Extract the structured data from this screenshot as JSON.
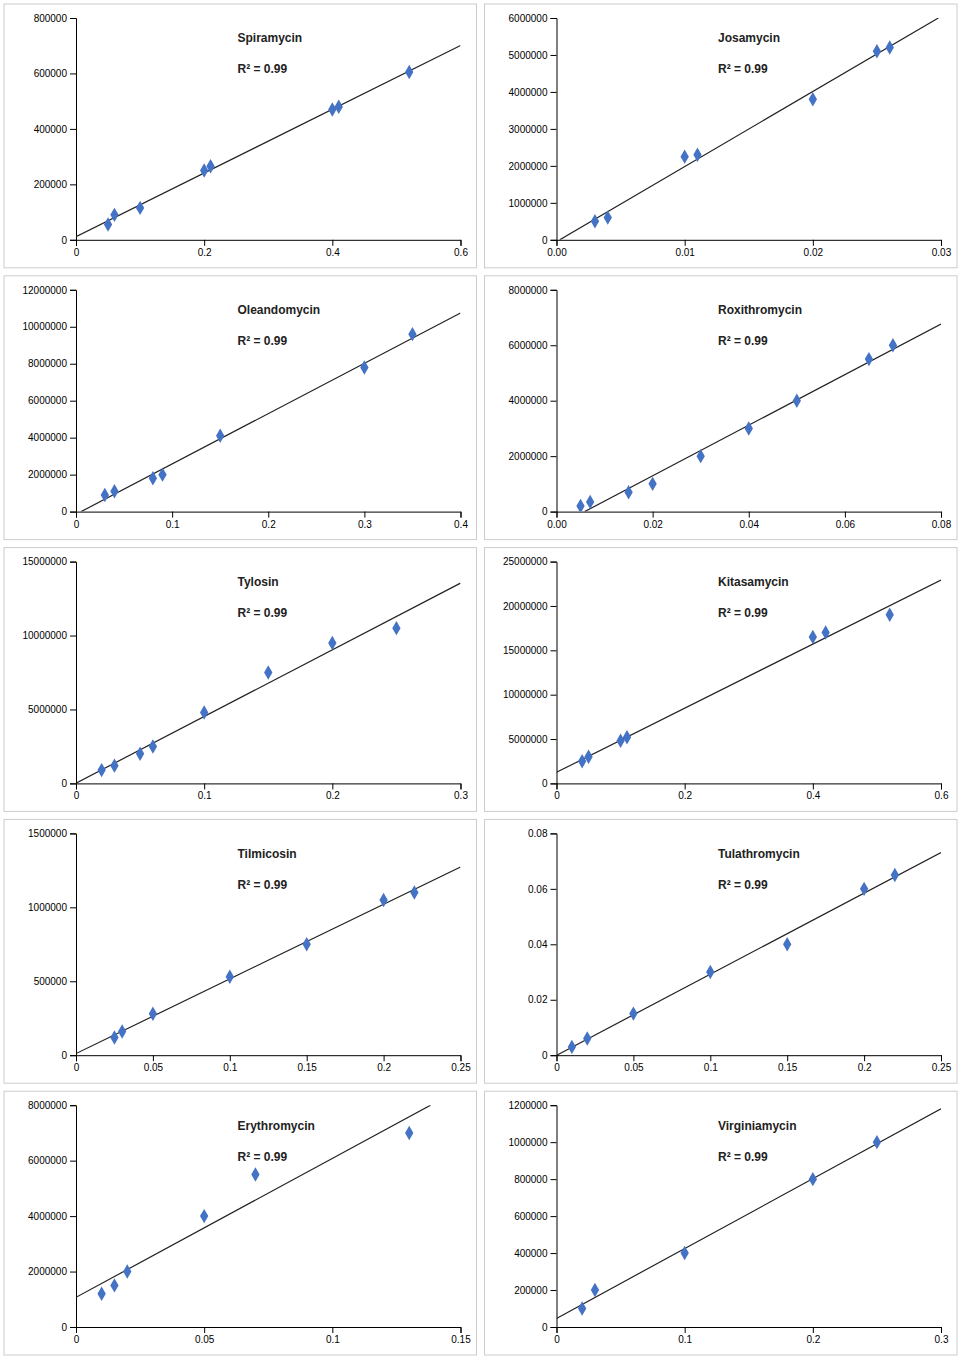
{
  "chart_data": [
    {
      "type": "scatter",
      "annotations": [
        "Spiramycin",
        "R² = 0.99"
      ],
      "grid": false,
      "xlim": [
        0,
        0.6
      ],
      "ylim": [
        0,
        800000
      ],
      "xticks": [
        0,
        0.2,
        0.4,
        0.6
      ],
      "yticks": [
        0,
        200000,
        400000,
        600000,
        800000
      ],
      "series": [
        {
          "type": "scatter",
          "color": "#4472C4",
          "marker": "diamond",
          "x": [
            0.05,
            0.06,
            0.1,
            0.2,
            0.21,
            0.4,
            0.41,
            0.52
          ],
          "values": [
            55000,
            90000,
            115000,
            250000,
            265000,
            470000,
            480000,
            605000
          ]
        },
        {
          "type": "line",
          "color": "#222222",
          "line_style": "solid",
          "x": [
            0,
            0.6
          ],
          "values": [
            11083,
            700726
          ]
        }
      ]
    },
    {
      "type": "scatter",
      "annotations": [
        "Josamycin",
        "R² = 0.99"
      ],
      "grid": false,
      "xlim": [
        0,
        0.03
      ],
      "ylim": [
        0,
        6000000
      ],
      "xticks": [
        {
          "value": 0,
          "label": "0.00"
        },
        0.01,
        0.02,
        0.03
      ],
      "yticks": [
        0,
        1000000,
        2000000,
        3000000,
        4000000,
        5000000,
        6000000
      ],
      "series": [
        {
          "type": "scatter",
          "color": "#4472C4",
          "marker": "diamond",
          "x": [
            0.003,
            0.004,
            0.01,
            0.011,
            0.02,
            0.025,
            0.026
          ],
          "values": [
            500000,
            600000,
            2250000,
            2300000,
            3800000,
            5100000,
            5200000
          ]
        },
        {
          "type": "line",
          "color": "#222222",
          "line_style": "solid",
          "x": [
            0.00025254,
            0.0297915
          ],
          "values": [
            0,
            6000000
          ]
        }
      ]
    },
    {
      "type": "scatter",
      "annotations": [
        "Oleandomycin",
        "R² = 0.99"
      ],
      "grid": false,
      "xlim": [
        0,
        0.4
      ],
      "ylim": [
        0,
        12000000
      ],
      "xticks": [
        0,
        0.1,
        0.2,
        0.3,
        0.4
      ],
      "yticks": [
        0,
        2000000,
        4000000,
        6000000,
        8000000,
        10000000,
        12000000
      ],
      "series": [
        {
          "type": "scatter",
          "color": "#4472C4",
          "marker": "diamond",
          "x": [
            0.03,
            0.04,
            0.08,
            0.09,
            0.15,
            0.3,
            0.35
          ],
          "values": [
            900000,
            1100000,
            1800000,
            2000000,
            4100000,
            7800000,
            9600000
          ]
        },
        {
          "type": "line",
          "color": "#222222",
          "line_style": "solid",
          "x": [
            0.005318,
            0.4
          ],
          "values": [
            0,
            10745020
          ]
        }
      ]
    },
    {
      "type": "scatter",
      "annotations": [
        "Roxithromycin",
        "R² = 0.99"
      ],
      "grid": false,
      "xlim": [
        0,
        0.08
      ],
      "ylim": [
        0,
        8000000
      ],
      "xticks": [
        {
          "value": 0,
          "label": "0.00"
        },
        0.02,
        0.04,
        0.06,
        0.08
      ],
      "yticks": [
        0,
        2000000,
        4000000,
        6000000,
        8000000
      ],
      "series": [
        {
          "type": "scatter",
          "color": "#4472C4",
          "marker": "diamond",
          "x": [
            0.005,
            0.007,
            0.015,
            0.02,
            0.03,
            0.04,
            0.05,
            0.065,
            0.07
          ],
          "values": [
            200000,
            350000,
            700000,
            1000000,
            2000000,
            3000000,
            4000000,
            5500000,
            6000000
          ]
        },
        {
          "type": "line",
          "color": "#222222",
          "line_style": "solid",
          "x": [
            0.0058589,
            0.08
          ],
          "values": [
            0,
            6766610
          ]
        }
      ]
    },
    {
      "type": "scatter",
      "annotations": [
        "Tylosin",
        "R² = 0.99"
      ],
      "grid": false,
      "xlim": [
        0,
        0.3
      ],
      "ylim": [
        0,
        15000000
      ],
      "xticks": [
        0,
        0.1,
        0.2,
        0.3
      ],
      "yticks": [
        0,
        5000000,
        10000000,
        15000000
      ],
      "series": [
        {
          "type": "scatter",
          "color": "#4472C4",
          "marker": "diamond",
          "x": [
            0.02,
            0.03,
            0.05,
            0.06,
            0.1,
            0.15,
            0.2,
            0.25
          ],
          "values": [
            900000,
            1200000,
            2000000,
            2500000,
            4800000,
            7500000,
            9500000,
            10500000
          ]
        },
        {
          "type": "line",
          "color": "#222222",
          "line_style": "solid",
          "x": [
            0,
            0.3
          ],
          "values": [
            15315,
            13542342
          ]
        }
      ]
    },
    {
      "type": "scatter",
      "annotations": [
        "Kitasamycin",
        "R² = 0.99"
      ],
      "grid": false,
      "xlim": [
        0,
        0.6
      ],
      "ylim": [
        0,
        25000000
      ],
      "xticks": [
        0,
        0.2,
        0.4,
        0.6
      ],
      "yticks": [
        0,
        5000000,
        10000000,
        15000000,
        20000000,
        25000000
      ],
      "series": [
        {
          "type": "scatter",
          "color": "#4472C4",
          "marker": "diamond",
          "x": [
            0.04,
            0.05,
            0.1,
            0.11,
            0.4,
            0.42,
            0.52
          ],
          "values": [
            2500000,
            3000000,
            4800000,
            5200000,
            16500000,
            17000000,
            19000000
          ]
        },
        {
          "type": "line",
          "color": "#222222",
          "line_style": "solid",
          "x": [
            0,
            0.6
          ],
          "values": [
            1247212,
            22931182
          ]
        }
      ]
    },
    {
      "type": "scatter",
      "annotations": [
        "Tilmicosin",
        "R² = 0.99"
      ],
      "grid": false,
      "xlim": [
        0,
        0.25
      ],
      "ylim": [
        0,
        1500000
      ],
      "xticks": [
        0,
        0.05,
        0.1,
        0.15,
        0.2,
        0.25
      ],
      "yticks": [
        0,
        500000,
        1000000,
        1500000
      ],
      "series": [
        {
          "type": "scatter",
          "color": "#4472C4",
          "marker": "diamond",
          "x": [
            0.025,
            0.03,
            0.05,
            0.1,
            0.15,
            0.2,
            0.22
          ],
          "values": [
            120000,
            160000,
            280000,
            530000,
            750000,
            1050000,
            1100000
          ]
        },
        {
          "type": "line",
          "color": "#222222",
          "line_style": "solid",
          "x": [
            0,
            0.25
          ],
          "values": [
            10930,
            1273346
          ]
        }
      ]
    },
    {
      "type": "scatter",
      "annotations": [
        "Tulathromycin",
        "R² = 0.99"
      ],
      "grid": false,
      "xlim": [
        0,
        0.25
      ],
      "ylim": [
        0,
        0.08
      ],
      "xticks": [
        0,
        0.05,
        0.1,
        0.15,
        0.2,
        0.25
      ],
      "yticks": [
        0,
        0.02,
        0.04,
        0.06,
        0.08
      ],
      "series": [
        {
          "type": "scatter",
          "color": "#4472C4",
          "marker": "diamond",
          "x": [
            0.01,
            0.02,
            0.05,
            0.1,
            0.15,
            0.2,
            0.22
          ],
          "values": [
            0.003,
            0.006,
            0.015,
            0.03,
            0.04,
            0.06,
            0.065
          ]
        },
        {
          "type": "line",
          "color": "#222222",
          "line_style": "solid",
          "x": [
            0.00017823,
            0.25
          ],
          "values": [
            0,
            0.0730695
          ]
        }
      ]
    },
    {
      "type": "scatter",
      "annotations": [
        "Erythromycin",
        "R² = 0.99"
      ],
      "grid": false,
      "xlim": [
        0,
        0.15
      ],
      "ylim": [
        0,
        8000000
      ],
      "xticks": [
        0,
        0.05,
        0.1,
        0.15
      ],
      "yticks": [
        0,
        2000000,
        4000000,
        6000000,
        8000000
      ],
      "series": [
        {
          "type": "scatter",
          "color": "#4472C4",
          "marker": "diamond",
          "x": [
            0.01,
            0.015,
            0.02,
            0.05,
            0.07,
            0.13
          ],
          "values": [
            1200000,
            1500000,
            2000000,
            4000000,
            5500000,
            7000000
          ]
        },
        {
          "type": "line",
          "color": "#222222",
          "line_style": "solid",
          "x": [
            0,
            0.1383094
          ],
          "values": [
            1069741,
            8000000
          ]
        }
      ]
    },
    {
      "type": "scatter",
      "annotations": [
        "Virginiamycin",
        "R² = 0.99"
      ],
      "grid": false,
      "xlim": [
        0,
        0.3
      ],
      "ylim": [
        0,
        1200000
      ],
      "xticks": [
        0,
        0.1,
        0.2,
        0.3
      ],
      "yticks": [
        0,
        200000,
        400000,
        600000,
        800000,
        1000000,
        1200000
      ],
      "series": [
        {
          "type": "scatter",
          "color": "#4472C4",
          "marker": "diamond",
          "x": [
            0.02,
            0.03,
            0.1,
            0.2,
            0.25
          ],
          "values": [
            100000,
            200000,
            400000,
            800000,
            1000000
          ]
        },
        {
          "type": "line",
          "color": "#222222",
          "line_style": "solid",
          "x": [
            0,
            0.3
          ],
          "values": [
            46411,
            1180383
          ]
        }
      ]
    }
  ]
}
